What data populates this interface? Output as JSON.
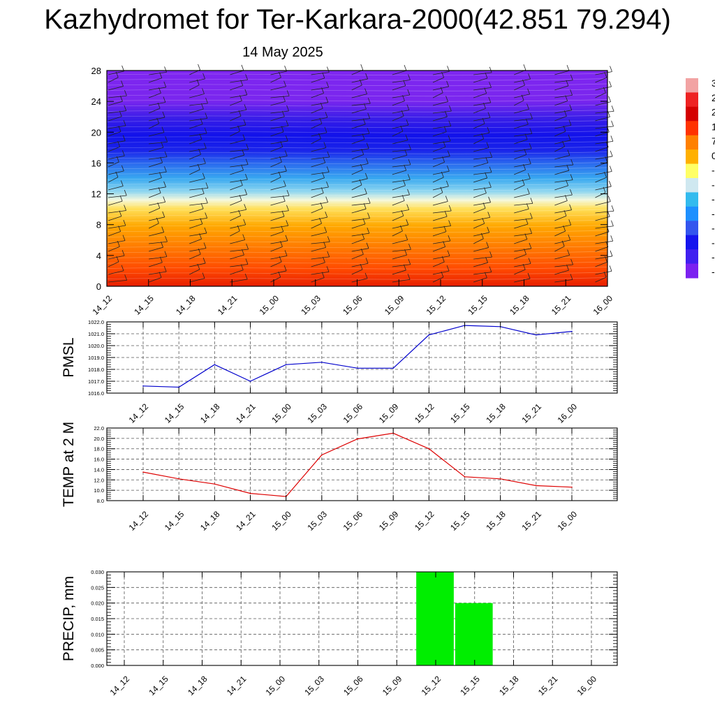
{
  "header": {
    "title": "Kazhydromet for Ter-Karkara-2000(42.851 79.294)",
    "date": "14 May 2025"
  },
  "colors": {
    "pmsl_line": "#0000cc",
    "temp_line": "#dd0000",
    "precip_bar": "#00ee00",
    "grid": "#555555"
  },
  "chart_data": [
    {
      "type": "heatmap",
      "title": "",
      "x": [
        "14_12",
        "14_15",
        "14_18",
        "14_21",
        "15_00",
        "15_03",
        "15_06",
        "15_09",
        "15_12",
        "15_15",
        "15_18",
        "15_21",
        "16_00"
      ],
      "yticks": [
        0,
        4,
        8,
        12,
        16,
        20,
        24,
        28
      ],
      "ylim": [
        0,
        28
      ],
      "colorscale_note": "temperature shading with wind barbs",
      "colorbar_labels": [
        "3",
        "2",
        "2",
        "1",
        "7",
        "0",
        "-",
        "-",
        "-",
        "-",
        "-",
        "-",
        "-",
        "-"
      ],
      "colorbar_colors": [
        "#f2a3a3",
        "#ee2222",
        "#d40000",
        "#ff3300",
        "#ff8000",
        "#ffb000",
        "#ffff66",
        "#cfe8f0",
        "#33bbee",
        "#1e90ff",
        "#3355ee",
        "#1515ee",
        "#4020f0",
        "#7b22f0"
      ]
    },
    {
      "type": "line",
      "ylabel": "PMSL",
      "x": [
        "14_12",
        "14_15",
        "14_18",
        "14_21",
        "15_00",
        "15_03",
        "15_06",
        "15_09",
        "15_12",
        "15_15",
        "15_18",
        "15_21",
        "16_00"
      ],
      "values": [
        1016.6,
        1016.5,
        1018.4,
        1017.0,
        1018.4,
        1018.6,
        1018.1,
        1018.1,
        1020.9,
        1021.7,
        1021.6,
        1020.9,
        1021.2
      ],
      "yticks": [
        "1016.0",
        "1017.0",
        "1018.0",
        "1019.0",
        "1020.0",
        "1021.0",
        "1022.0"
      ],
      "ylim": [
        1016.0,
        1022.0
      ],
      "grid": true
    },
    {
      "type": "line",
      "ylabel": "TEMP at 2 M",
      "x": [
        "14_12",
        "14_15",
        "14_18",
        "14_21",
        "15_00",
        "15_03",
        "15_06",
        "15_09",
        "15_12",
        "15_15",
        "15_18",
        "15_21",
        "16_00"
      ],
      "values": [
        13.5,
        12.2,
        11.2,
        9.4,
        8.8,
        16.8,
        19.9,
        21.0,
        18.0,
        12.6,
        12.2,
        10.9,
        10.6
      ],
      "yticks": [
        "8.0",
        "10.0",
        "12.0",
        "14.0",
        "16.0",
        "18.0",
        "20.0",
        "22.0"
      ],
      "ylim": [
        8.0,
        22.0
      ],
      "grid": true
    },
    {
      "type": "bar",
      "ylabel": "PRECIP, mm",
      "x": [
        "14_12",
        "14_15",
        "14_18",
        "14_21",
        "15_00",
        "15_03",
        "15_06",
        "15_09",
        "15_12",
        "15_15",
        "15_18",
        "15_21",
        "16_00"
      ],
      "values": [
        0,
        0,
        0,
        0,
        0,
        0,
        0,
        0,
        0.03,
        0.02,
        0,
        0,
        0
      ],
      "yticks": [
        "0.000",
        "0.005",
        "0.010",
        "0.015",
        "0.020",
        "0.025",
        "0.030"
      ],
      "ylim": [
        0,
        0.03
      ],
      "grid": true
    }
  ]
}
